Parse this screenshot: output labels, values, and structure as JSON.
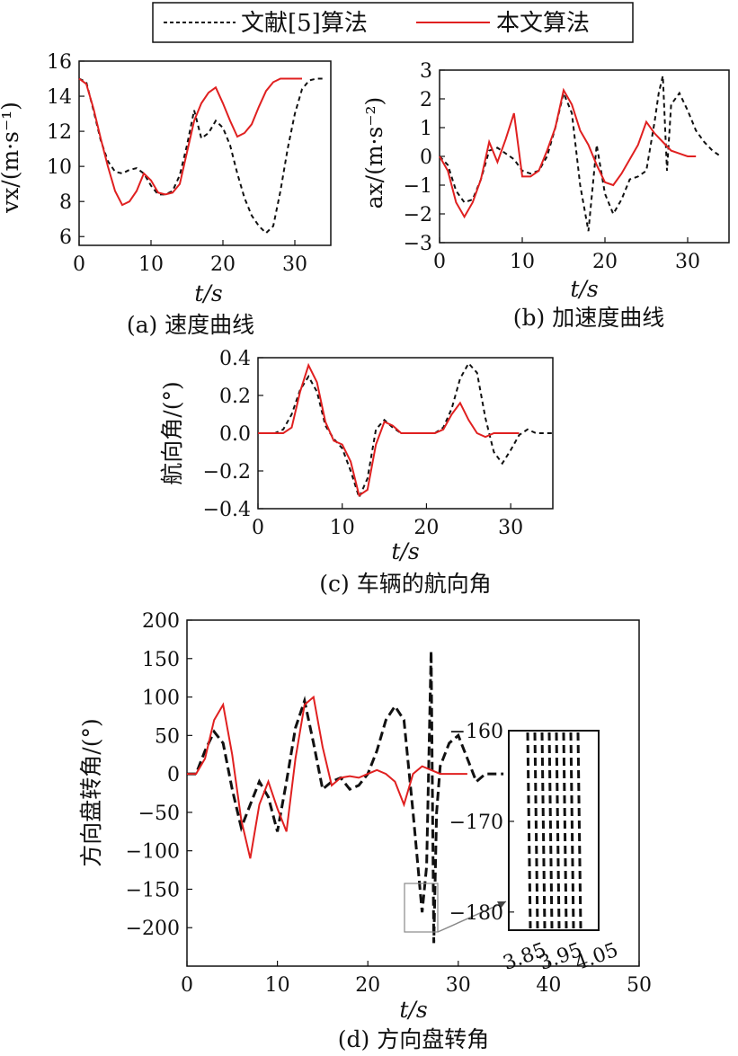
{
  "legend": {
    "items": [
      {
        "label": "文献[5]算法",
        "color": "#111111",
        "style": "dashed"
      },
      {
        "label": "本文算法",
        "color": "#e02020",
        "style": "solid"
      }
    ]
  },
  "chart_data": [
    {
      "id": "a",
      "type": "line",
      "caption": "(a) 速度曲线",
      "xlabel": "t/s",
      "ylabel": "vx/(m·s⁻¹)",
      "xlim": [
        0,
        35
      ],
      "ylim": [
        5.5,
        16
      ],
      "xticks": [
        0,
        10,
        20,
        30
      ],
      "yticks": [
        6,
        8,
        10,
        12,
        14,
        16
      ],
      "series": [
        {
          "name": "文献[5]算法",
          "x": [
            0,
            1,
            2,
            3,
            4,
            5,
            6,
            7,
            8,
            9,
            10,
            11,
            12,
            13,
            14,
            15,
            16,
            17,
            18,
            19,
            20,
            21,
            22,
            23,
            24,
            25,
            26,
            27,
            28,
            29,
            30,
            31,
            32,
            33,
            34
          ],
          "y": [
            15.0,
            14.8,
            13.2,
            11.5,
            10.3,
            9.7,
            9.6,
            9.8,
            9.9,
            9.6,
            8.9,
            8.4,
            8.4,
            8.6,
            9.5,
            11.2,
            13.2,
            11.6,
            11.9,
            12.6,
            12.2,
            11.2,
            9.6,
            8.2,
            7.2,
            6.6,
            6.2,
            6.6,
            8.6,
            11.0,
            13.0,
            14.4,
            14.9,
            15.0,
            15.0
          ]
        },
        {
          "name": "本文算法",
          "x": [
            0,
            1,
            2,
            3,
            4,
            5,
            6,
            7,
            8,
            9,
            10,
            11,
            12,
            13,
            14,
            15,
            16,
            17,
            18,
            19,
            20,
            21,
            22,
            23,
            24,
            25,
            26,
            27,
            28,
            29,
            30,
            31
          ],
          "y": [
            15.0,
            14.7,
            13.3,
            11.6,
            10.0,
            8.6,
            7.8,
            8.0,
            8.6,
            9.6,
            9.2,
            8.5,
            8.4,
            8.5,
            9.0,
            10.8,
            12.6,
            13.6,
            14.2,
            14.5,
            13.6,
            12.6,
            11.7,
            11.9,
            12.4,
            13.4,
            14.3,
            14.8,
            15.0,
            15.0,
            15.0,
            15.0
          ]
        }
      ]
    },
    {
      "id": "b",
      "type": "line",
      "caption": "(b) 加速度曲线",
      "xlabel": "t/s",
      "ylabel": "ax/(m·s⁻²)",
      "xlim": [
        0,
        35
      ],
      "ylim": [
        -3,
        3
      ],
      "xticks": [
        0,
        10,
        20,
        30
      ],
      "yticks": [
        -3,
        -2,
        -1,
        0,
        1,
        2,
        3
      ],
      "series": [
        {
          "name": "文献[5]算法",
          "x": [
            0,
            1,
            2,
            3,
            4,
            5,
            6,
            7,
            8,
            9,
            10,
            11,
            12,
            13,
            14,
            15,
            16,
            17,
            18,
            19,
            20,
            21,
            22,
            23,
            24,
            25,
            26,
            26.5,
            27,
            27.5,
            28,
            29,
            30,
            31,
            32,
            33,
            34
          ],
          "y": [
            0,
            -0.3,
            -1.2,
            -1.6,
            -1.5,
            -0.8,
            0.2,
            0.3,
            0.1,
            -0.1,
            -0.5,
            -0.6,
            -0.5,
            0.0,
            1.0,
            2.2,
            1.5,
            -1.0,
            -2.6,
            0.4,
            -1.3,
            -2.0,
            -1.5,
            -0.8,
            -0.7,
            -0.5,
            1.2,
            2.2,
            2.8,
            -0.5,
            1.8,
            2.2,
            1.6,
            0.9,
            0.5,
            0.2,
            0
          ]
        },
        {
          "name": "本文算法",
          "x": [
            0,
            1,
            2,
            3,
            4,
            5,
            6,
            7,
            8,
            9,
            10,
            11,
            12,
            13,
            14,
            15,
            16,
            17,
            18,
            19,
            20,
            21,
            22,
            23,
            24,
            25,
            26,
            27,
            28,
            29,
            30,
            31
          ],
          "y": [
            0,
            -0.5,
            -1.6,
            -2.1,
            -1.6,
            -0.8,
            0.5,
            -0.2,
            0.6,
            1.5,
            -0.7,
            -0.7,
            -0.5,
            0.2,
            1.0,
            2.3,
            1.8,
            0.9,
            0.4,
            -0.3,
            -0.9,
            -1.0,
            -0.6,
            -0.1,
            0.4,
            1.2,
            0.8,
            0.5,
            0.2,
            0.1,
            0.0,
            0.0
          ]
        }
      ]
    },
    {
      "id": "c",
      "type": "line",
      "caption": "(c) 车辆的航向角",
      "xlabel": "t/s",
      "ylabel": "航向角/(°)",
      "xlim": [
        0,
        35
      ],
      "ylim": [
        -0.4,
        0.4
      ],
      "xticks": [
        0,
        10,
        20,
        30
      ],
      "yticks": [
        -0.4,
        -0.2,
        0.0,
        0.2,
        0.4
      ],
      "series": [
        {
          "name": "文献[5]算法",
          "x": [
            0,
            1,
            2,
            3,
            4,
            5,
            6,
            7,
            8,
            9,
            10,
            11,
            12,
            13,
            14,
            15,
            16,
            17,
            18,
            19,
            20,
            21,
            22,
            23,
            24,
            25,
            26,
            27,
            28,
            29,
            30,
            31,
            32,
            33,
            34,
            35
          ],
          "y": [
            0,
            0,
            0,
            0.02,
            0.1,
            0.23,
            0.3,
            0.22,
            0.04,
            -0.03,
            -0.08,
            -0.2,
            -0.34,
            -0.24,
            0.02,
            0.07,
            0.03,
            0,
            0,
            0,
            0,
            0,
            0.03,
            0.13,
            0.29,
            0.37,
            0.32,
            0.08,
            -0.1,
            -0.16,
            -0.09,
            -0.01,
            0.02,
            0,
            0,
            0
          ]
        },
        {
          "name": "本文算法",
          "x": [
            0,
            1,
            2,
            3,
            4,
            5,
            6,
            7,
            8,
            9,
            10,
            11,
            12,
            13,
            14,
            15,
            16,
            17,
            18,
            19,
            20,
            21,
            22,
            23,
            24,
            25,
            26,
            27,
            28,
            29,
            30,
            31
          ],
          "y": [
            0,
            0,
            0,
            0,
            0.03,
            0.22,
            0.36,
            0.27,
            0.06,
            -0.04,
            -0.06,
            -0.15,
            -0.33,
            -0.3,
            -0.06,
            0.06,
            0.04,
            0,
            0,
            0,
            0,
            0,
            0.02,
            0.1,
            0.16,
            0.07,
            0,
            -0.02,
            0,
            0,
            0,
            0
          ]
        }
      ]
    },
    {
      "id": "d",
      "type": "line",
      "caption": "(d) 方向盘转角",
      "xlabel": "t/s",
      "ylabel": "方向盘转角/(°)",
      "xlim": [
        0,
        50
      ],
      "ylim": [
        -250,
        200
      ],
      "xticks": [
        0,
        10,
        20,
        30,
        40,
        50
      ],
      "yticks": [
        -200,
        -150,
        -100,
        -50,
        0,
        50,
        100,
        150,
        200
      ],
      "series": [
        {
          "name": "文献[5]算法",
          "x": [
            0,
            1,
            2,
            3,
            4,
            5,
            6,
            7,
            8,
            9,
            10,
            11,
            12,
            13,
            14,
            15,
            16,
            17,
            18,
            19,
            20,
            21,
            22,
            23,
            24,
            25,
            26,
            26.5,
            27,
            27.3,
            27.6,
            28,
            29,
            30,
            31,
            32,
            33,
            34,
            35
          ],
          "y": [
            0,
            0,
            30,
            55,
            40,
            -20,
            -70,
            -40,
            -10,
            -30,
            -75,
            -10,
            60,
            95,
            40,
            -20,
            -10,
            -5,
            -20,
            -15,
            0,
            30,
            70,
            88,
            70,
            -50,
            -180,
            -120,
            160,
            -220,
            -50,
            10,
            40,
            50,
            20,
            -10,
            0,
            0,
            0
          ]
        },
        {
          "name": "本文算法",
          "x": [
            0,
            1,
            2,
            3,
            4,
            5,
            6,
            7,
            8,
            9,
            10,
            11,
            12,
            13,
            14,
            15,
            16,
            17,
            18,
            19,
            20,
            21,
            22,
            23,
            24,
            25,
            26,
            27,
            28,
            29,
            30,
            31
          ],
          "y": [
            0,
            0,
            20,
            70,
            90,
            25,
            -60,
            -110,
            -40,
            -10,
            -45,
            -75,
            20,
            90,
            100,
            35,
            -15,
            -5,
            -3,
            -5,
            0,
            5,
            0,
            -10,
            -40,
            0,
            10,
            5,
            0,
            0,
            0,
            0
          ]
        }
      ],
      "inset": {
        "xlim": [
          3.8,
          4.05
        ],
        "ylim": [
          -182,
          -160
        ],
        "xticks": [
          3.85,
          3.95,
          4.05
        ],
        "yticks": [
          -180,
          -170,
          -160
        ]
      }
    }
  ]
}
